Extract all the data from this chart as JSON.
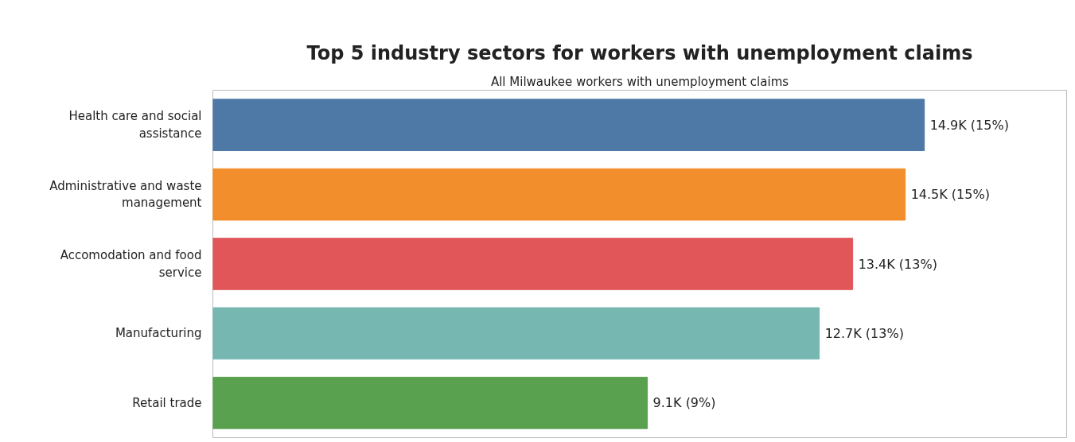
{
  "chart_data": {
    "type": "bar",
    "orientation": "horizontal",
    "title": "Top 5 industry sectors for workers with unemployment claims",
    "subtitle": "All Milwaukee workers with unemployment claims",
    "categories": [
      "Health care and social assistance",
      "Administrative and waste management",
      "Accomodation and food service",
      "Manufacturing",
      "Retail trade"
    ],
    "values": [
      14.9,
      14.5,
      13.4,
      12.7,
      9.1
    ],
    "colors": [
      "#4e79a7",
      "#f28e2b",
      "#e15759",
      "#76b7b2",
      "#59a14f"
    ],
    "value_labels": [
      "14.9K (15%)",
      "14.5K (15%)",
      "13.4K (13%)",
      "12.7K (13%)",
      "9.1K (9%)"
    ],
    "grid": false
  }
}
